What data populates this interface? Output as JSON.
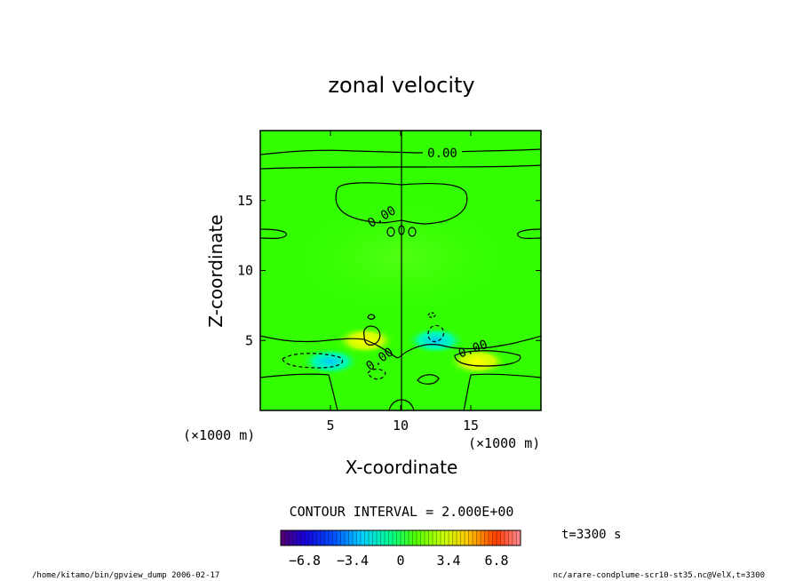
{
  "chart_data": {
    "type": "heatmap",
    "title": "zonal velocity",
    "xlabel": "X-coordinate",
    "ylabel": "Z-coordinate",
    "x_units": "(×1000 m)",
    "y_units": "(×1000 m)",
    "xlim": [
      0,
      20
    ],
    "ylim": [
      0,
      20
    ],
    "x_ticks": [
      5,
      10,
      15
    ],
    "y_ticks": [
      5,
      10,
      15
    ],
    "contour_interval_text": "CONTOUR INTERVAL = 2.000E+00",
    "contour_labels": [
      "0.00",
      "0.00",
      "0.00",
      "0.00"
    ],
    "colorbar_ticks": [
      -6.8,
      -3.4,
      0,
      3.4,
      6.8
    ],
    "colorbar_tick_labels": [
      "−6.8",
      "−3.4",
      "0",
      "3.4",
      "6.8"
    ],
    "colorbar_range": [
      -8.5,
      8.5
    ],
    "time_label": "t=3300 s",
    "features": [
      {
        "x": 7.5,
        "z": 5.0,
        "sign": "positive"
      },
      {
        "x": 12.5,
        "z": 5.0,
        "sign": "negative"
      },
      {
        "x": 5.0,
        "z": 3.5,
        "sign": "negative"
      },
      {
        "x": 15.5,
        "z": 3.5,
        "sign": "positive"
      }
    ]
  },
  "footer": {
    "left": "/home/kitamo/bin/gpview_dump  2006-02-17",
    "right": "nc/arare-condplume-scr10-st35.nc@VelX,t=3300"
  },
  "colors": {
    "background_field": "#33ff00",
    "contour_line": "#000000"
  }
}
